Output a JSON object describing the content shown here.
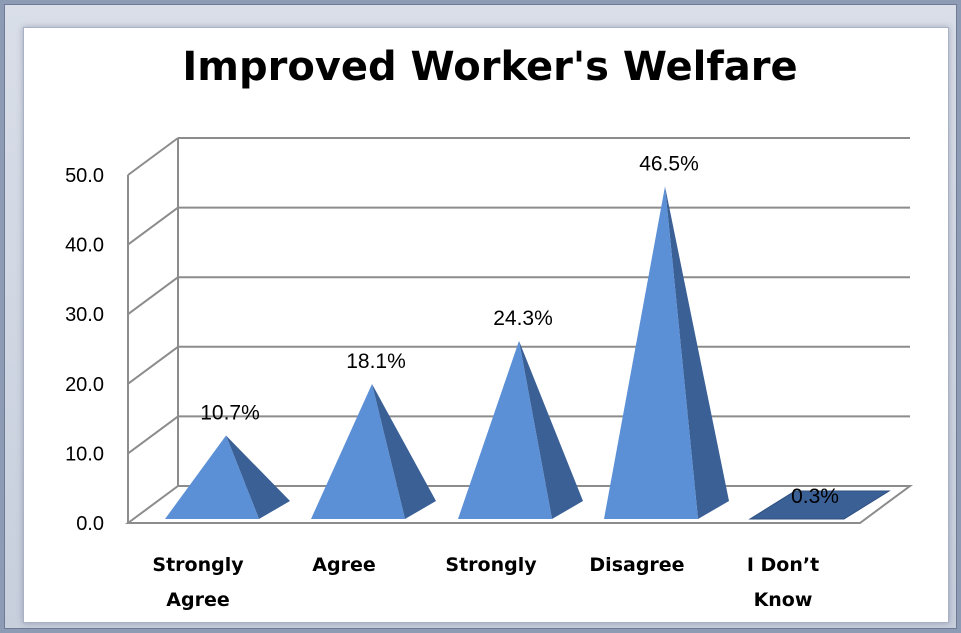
{
  "chart_data": {
    "type": "bar",
    "title": "Improved Worker's Welfare",
    "categories": [
      [
        "Strongly",
        "Agree"
      ],
      [
        "Agree"
      ],
      [
        "Strongly"
      ],
      [
        "Disagree"
      ],
      [
        "I Don’t",
        "Know"
      ]
    ],
    "values": [
      10.7,
      18.1,
      24.3,
      46.5,
      0.3
    ],
    "data_labels": [
      "10.7%",
      "18.1%",
      "24.3%",
      "46.5%",
      "0.3%"
    ],
    "y_ticks": [
      "0.0",
      "10.0",
      "20.0",
      "30.0",
      "40.0",
      "50.0"
    ],
    "ylim": [
      0,
      50
    ],
    "grid": true,
    "xlabel": "",
    "ylabel": "",
    "legend": "none",
    "colors": {
      "bar_front": "#5b8fd6",
      "bar_side": "#3a6096",
      "grid": "#8c8c8c"
    }
  }
}
